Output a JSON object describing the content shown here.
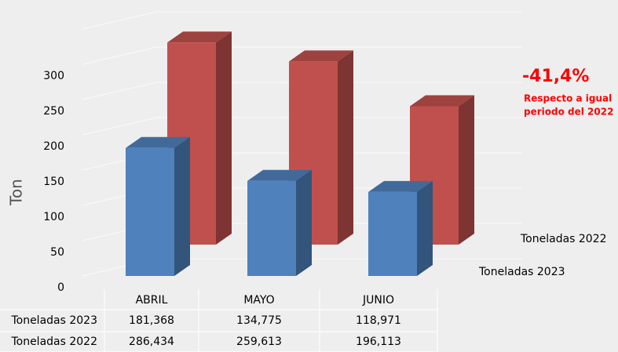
{
  "chart_data": {
    "type": "bar3d",
    "y_label": "Ton",
    "categories": [
      "ABRIL",
      "MAYO",
      "JUNIO"
    ],
    "series": [
      {
        "name": "Toneladas 2023",
        "color": "#4f81bd",
        "values": [
          181.368,
          134.775,
          118.971
        ],
        "value_labels": [
          "181,368",
          "134,775",
          "118,971"
        ]
      },
      {
        "name": "Toneladas 2022",
        "color": "#c0504d",
        "values": [
          286.434,
          259.613,
          196.113
        ],
        "value_labels": [
          "286,434",
          "259,613",
          "196,113"
        ]
      }
    ],
    "ylim": [
      0,
      350
    ],
    "yticks": [
      0,
      50,
      100,
      150,
      200,
      250,
      300
    ],
    "grid": true,
    "annotation": "-41,4%",
    "annotation_note": [
      "Respecto a igual",
      "periodo del 2022"
    ]
  }
}
